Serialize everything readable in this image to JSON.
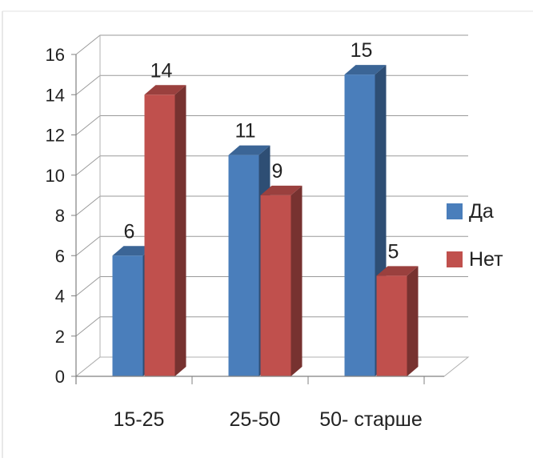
{
  "chart_data": {
    "type": "bar",
    "three_d": true,
    "categories": [
      "15-25",
      "25-50",
      "50- старше"
    ],
    "series": [
      {
        "name": "Да",
        "values": [
          6,
          11,
          15
        ],
        "color": "#4a7ebb"
      },
      {
        "name": "Нет",
        "values": [
          14,
          9,
          5
        ],
        "color": "#c0504d"
      }
    ],
    "title": "",
    "xlabel": "",
    "ylabel": "",
    "ylim": [
      0,
      16
    ],
    "yticks": [
      0,
      2,
      4,
      6,
      8,
      10,
      12,
      14,
      16
    ],
    "grid": true,
    "legend": "right",
    "data_labels": true
  }
}
